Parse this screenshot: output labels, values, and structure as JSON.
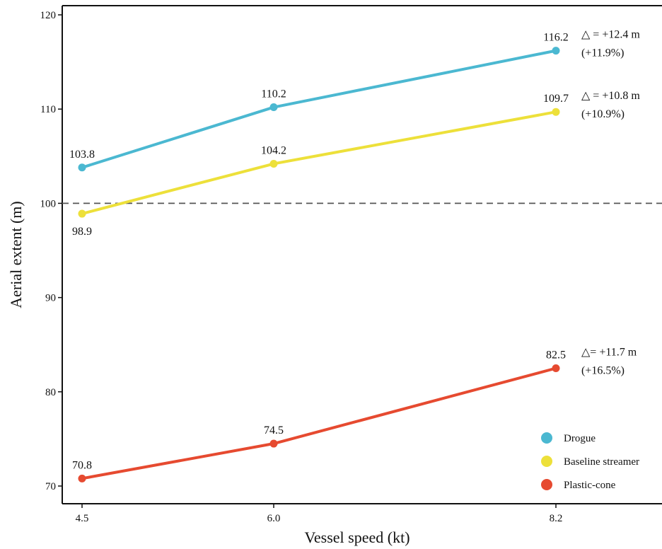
{
  "chart_data": {
    "type": "line",
    "title": "",
    "xlabel": "Vessel speed (kt)",
    "ylabel": "Aerial extent (m)",
    "x": [
      4.5,
      6.0,
      8.2
    ],
    "x_tick_labels": [
      "4.5",
      "6.0",
      "8.2"
    ],
    "ylim": [
      68,
      121
    ],
    "y_ticks": [
      70,
      80,
      90,
      100,
      110,
      120
    ],
    "y_tick_labels": [
      "70",
      "80",
      "90",
      "100",
      "110",
      "120"
    ],
    "reference_line": {
      "y": 100,
      "style": "dashed",
      "color": "#555555"
    },
    "grid": false,
    "legend_position": "bottom-right",
    "series": [
      {
        "name": "Drogue",
        "color": "#4BB8D1",
        "values": [
          103.8,
          110.2,
          116.2
        ],
        "value_labels": [
          "103.8",
          "110.2",
          "116.2"
        ],
        "label_positions": [
          "above",
          "above",
          "above"
        ],
        "annotation": [
          "△ = +12.4 m",
          "(+11.9%)"
        ]
      },
      {
        "name": "Baseline streamer",
        "color": "#EDE03A",
        "values": [
          98.9,
          104.2,
          109.7
        ],
        "value_labels": [
          "98.9",
          "104.2",
          "109.7"
        ],
        "label_positions": [
          "below",
          "above",
          "above"
        ],
        "annotation": [
          "△ = +10.8 m",
          "(+10.9%)"
        ]
      },
      {
        "name": "Plastic-cone",
        "color": "#E64A30",
        "values": [
          70.8,
          74.5,
          82.5
        ],
        "value_labels": [
          "70.8",
          "74.5",
          "82.5"
        ],
        "label_positions": [
          "above",
          "above",
          "above"
        ],
        "annotation": [
          "△= +11.7 m",
          "(+16.5%)"
        ]
      }
    ]
  }
}
